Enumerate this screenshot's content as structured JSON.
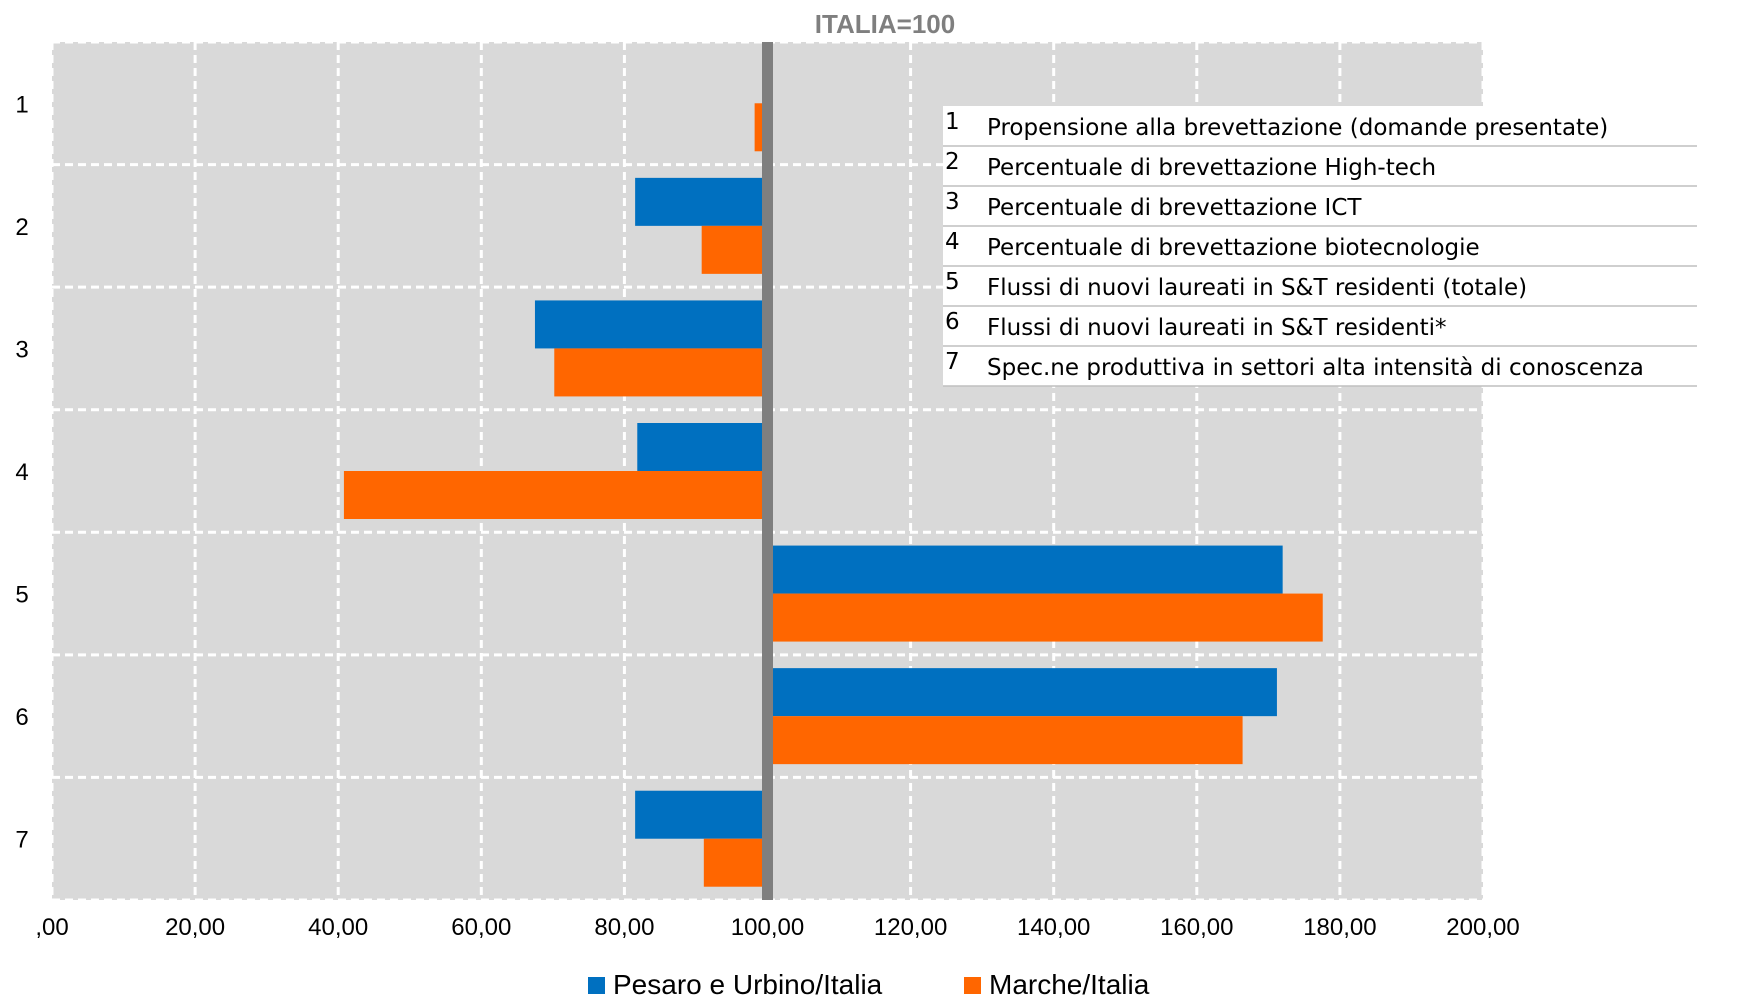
{
  "chart_data": {
    "type": "bar",
    "orientation": "horizontal",
    "title": "ITALIA=100",
    "categories": [
      "1",
      "2",
      "3",
      "4",
      "5",
      "6",
      "7"
    ],
    "baseline": 100,
    "xlim": [
      0,
      200
    ],
    "x_ticks": [
      ",00",
      "20,00",
      "40,00",
      "60,00",
      "80,00",
      "100,00",
      "120,00",
      "140,00",
      "160,00",
      "180,00",
      "200,00"
    ],
    "grid": true,
    "series": [
      {
        "name": "Pesaro e Urbino/Italia",
        "color": "#0070C0",
        "values": [
          99.8,
          81.5,
          67.5,
          81.8,
          172.0,
          171.2,
          81.5
        ]
      },
      {
        "name": "Marche/Italia",
        "color": "#FF6600",
        "values": [
          98.2,
          90.8,
          70.2,
          40.8,
          177.6,
          166.4,
          91.1
        ]
      }
    ],
    "legend_position": "bottom",
    "annotation_table": [
      {
        "num": "1",
        "text": "Propensione alla brevettazione (domande presentate)"
      },
      {
        "num": "2",
        "text": "Percentuale di brevettazione High-tech"
      },
      {
        "num": "3",
        "text": "Percentuale di brevettazione ICT"
      },
      {
        "num": "4",
        "text": "Percentuale di brevettazione biotecnologie"
      },
      {
        "num": "5",
        "text": "Flussi di nuovi laureati in S&T residenti (totale)"
      },
      {
        "num": "6",
        "text": "Flussi di nuovi laureati in S&T residenti*"
      },
      {
        "num": "7",
        "text": "Spec.ne produttiva in settori alta intensità di conoscenza"
      }
    ]
  }
}
